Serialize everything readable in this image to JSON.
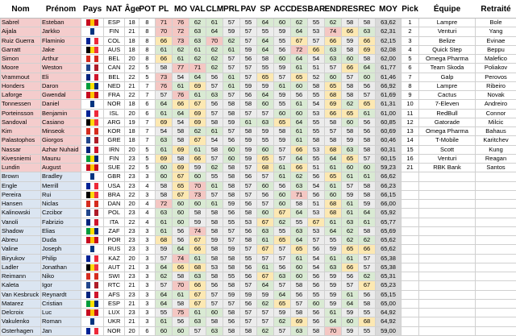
{
  "table": {
    "headers": [
      "Nom",
      "Prénom",
      "Pays",
      "NAT",
      "Âge",
      "POT",
      "PL",
      "MO",
      "VAL",
      "CLM",
      "PRL",
      "PAV",
      "SP",
      "ACC",
      "DES",
      "BAR",
      "END",
      "RES",
      "REC",
      "MOY",
      "Pick",
      "Équipe",
      "Retraité"
    ],
    "rows": [
      [
        "Sabrel",
        "Esteban",
        "ESP",
        18,
        8,
        71,
        76,
        62,
        61,
        57,
        55,
        64,
        60,
        62,
        55,
        62,
        58,
        58,
        "63,62",
        1,
        "Lampre",
        "Bole"
      ],
      [
        "Aijala",
        "Jarkko",
        "FIN",
        21,
        8,
        70,
        72,
        63,
        64,
        59,
        57,
        55,
        59,
        64,
        53,
        74,
        66,
        63,
        "62,31",
        2,
        "Venturi",
        "Yang"
      ],
      [
        "Ruiz Guerra",
        "Flaminio",
        "COL",
        18,
        8,
        66,
        73,
        63,
        70,
        62,
        57,
        64,
        55,
        67,
        57,
        66,
        59,
        66,
        "62,15",
        3,
        "Belize",
        "Evinae"
      ],
      [
        "Garratt",
        "Jake",
        "AUS",
        18,
        8,
        61,
        62,
        61,
        62,
        61,
        59,
        64,
        56,
        72,
        66,
        63,
        58,
        69,
        "62,08",
        4,
        "Quick Step",
        "Beppu"
      ],
      [
        "Simon",
        "Arthur",
        "BEL",
        20,
        8,
        66,
        61,
        62,
        62,
        57,
        56,
        58,
        60,
        64,
        54,
        63,
        60,
        58,
        "62,00",
        5,
        "Omega Pharma",
        "Malefico"
      ],
      [
        "Moore",
        "Weston",
        "CAN",
        22,
        5,
        58,
        77,
        71,
        62,
        57,
        57,
        55,
        59,
        61,
        51,
        57,
        66,
        64,
        "61,77",
        6,
        "Team Skoda",
        "Poliakov"
      ],
      [
        "Vrammout",
        "Eli",
        "BEL",
        22,
        5,
        73,
        54,
        64,
        56,
        61,
        57,
        65,
        57,
        65,
        52,
        60,
        57,
        60,
        "61,46",
        7,
        "Galp",
        "Perovos"
      ],
      [
        "Honders",
        "Daron",
        "NED",
        21,
        7,
        76,
        61,
        69,
        57,
        61,
        59,
        59,
        61,
        60,
        58,
        65,
        58,
        56,
        "66,92",
        8,
        "Lampre",
        "Ribeiro"
      ],
      [
        "Laforge",
        "Gwendal",
        "FRA",
        22,
        7,
        57,
        76,
        61,
        63,
        57,
        56,
        64,
        59,
        56,
        55,
        68,
        58,
        57,
        "61,69",
        9,
        "Cactus",
        "Novak"
      ],
      [
        "Tonnessen",
        "Daniel",
        "NOR",
        18,
        6,
        64,
        66,
        67,
        56,
        58,
        58,
        60,
        55,
        61,
        54,
        69,
        62,
        65,
        "61,31",
        10,
        "7-Eleven",
        "Andreiro"
      ],
      [
        "Porteinsson",
        "Benjamin",
        "ISL",
        20,
        6,
        61,
        64,
        69,
        57,
        58,
        57,
        57,
        60,
        60,
        53,
        66,
        65,
        61,
        "61,00",
        11,
        "RedBull",
        "Connor"
      ],
      [
        "Sandoval",
        "Casiano",
        "ARG",
        19,
        7,
        69,
        54,
        69,
        58,
        59,
        61,
        63,
        65,
        64,
        55,
        58,
        60,
        56,
        "60,85",
        12,
        "Gatorade",
        "Milcic"
      ],
      [
        "Kim",
        "Minseok",
        "KOR",
        18,
        7,
        54,
        58,
        62,
        61,
        57,
        58,
        59,
        58,
        61,
        55,
        57,
        58,
        56,
        "60,69",
        13,
        "Omega Pharma",
        "Bahaus"
      ],
      [
        "Palastophos",
        "Giorgos",
        "GRE",
        18,
        7,
        63,
        58,
        67,
        54,
        56,
        59,
        55,
        59,
        61,
        58,
        58,
        59,
        58,
        "60,46",
        14,
        "T-Mobile",
        "Karitchev"
      ],
      [
        "Nassar",
        "Azhar Nuhaid",
        "IRN",
        20,
        5,
        61,
        69,
        61,
        58,
        60,
        59,
        60,
        57,
        66,
        53,
        68,
        63,
        58,
        "60,31",
        15,
        "Scott",
        "Kung"
      ],
      [
        "Kivesniemi",
        "Maunu",
        "FIN",
        23,
        5,
        69,
        58,
        66,
        57,
        60,
        59,
        65,
        57,
        64,
        55,
        64,
        65,
        57,
        "60,15",
        16,
        "Venturi",
        "Reagan"
      ],
      [
        "Lundin",
        "August",
        "SUE",
        22,
        5,
        60,
        69,
        59,
        62,
        58,
        57,
        68,
        61,
        66,
        51,
        61,
        60,
        60,
        "59,23",
        21,
        "RBK Bank",
        "Santos"
      ],
      [
        "Brown",
        "Bradley",
        "GBR",
        23,
        3,
        60,
        67,
        60,
        55,
        58,
        56,
        57,
        61,
        62,
        56,
        65,
        61,
        61,
        "66,62"
      ],
      [
        "Engle",
        "Merrill",
        "USA",
        23,
        4,
        58,
        65,
        70,
        61,
        58,
        57,
        60,
        56,
        63,
        54,
        61,
        57,
        58,
        "66,23"
      ],
      [
        "Pereira",
        "Rui",
        "BRA",
        22,
        3,
        58,
        67,
        73,
        57,
        58,
        57,
        56,
        60,
        71,
        56,
        60,
        59,
        58,
        "66,15"
      ],
      [
        "Hansen",
        "Niclas",
        "DAN",
        20,
        4,
        72,
        60,
        60,
        61,
        59,
        56,
        57,
        60,
        58,
        51,
        68,
        61,
        59,
        "66,00"
      ],
      [
        "Kalinowski",
        "Czcibor",
        "POL",
        23,
        4,
        63,
        60,
        58,
        58,
        56,
        58,
        60,
        67,
        64,
        53,
        68,
        61,
        64,
        "65,92"
      ],
      [
        "Vanoli",
        "Fabrizio",
        "ITA",
        22,
        4,
        61,
        60,
        59,
        58,
        55,
        53,
        67,
        62,
        55,
        67,
        61,
        63,
        61,
        "65,77"
      ],
      [
        "Shadow",
        "Elias",
        "ZAF",
        23,
        3,
        61,
        56,
        74,
        58,
        57,
        56,
        63,
        55,
        63,
        53,
        64,
        62,
        58,
        "65,69"
      ],
      [
        "Abreu",
        "Duda",
        "POR",
        23,
        3,
        68,
        56,
        67,
        59,
        57,
        58,
        61,
        65,
        64,
        57,
        55,
        62,
        62,
        "65,62"
      ],
      [
        "Valine",
        "Joseph",
        "RUS",
        23,
        3,
        59,
        64,
        66,
        58,
        59,
        57,
        67,
        57,
        65,
        56,
        59,
        65,
        66,
        "65,62"
      ],
      [
        "Biryukov",
        "Philip",
        "KAZ",
        20,
        3,
        57,
        74,
        61,
        58,
        58,
        55,
        57,
        57,
        61,
        54,
        61,
        61,
        57,
        "65,38"
      ],
      [
        "Ladler",
        "Jonathan",
        "AUT",
        21,
        3,
        64,
        66,
        68,
        53,
        58,
        56,
        61,
        56,
        60,
        54,
        63,
        66,
        57,
        "65,38"
      ],
      [
        "Reimann",
        "Niko",
        "SWI",
        23,
        3,
        62,
        58,
        63,
        58,
        55,
        56,
        67,
        63,
        60,
        56,
        59,
        56,
        62,
        "65,31"
      ],
      [
        "Kaleta",
        "Igor",
        "RTC",
        21,
        3,
        57,
        70,
        66,
        56,
        58,
        57,
        64,
        57,
        58,
        56,
        59,
        57,
        67,
        "65,23"
      ],
      [
        "Van Kesbruck",
        "Reynardt",
        "AFS",
        23,
        3,
        64,
        61,
        67,
        57,
        59,
        59,
        59,
        64,
        56,
        55,
        59,
        61,
        56,
        "65,15"
      ],
      [
        "Matarez",
        "Cristian",
        "ESP",
        21,
        3,
        64,
        58,
        67,
        57,
        57,
        56,
        62,
        65,
        57,
        60,
        59,
        64,
        58,
        "65,00"
      ],
      [
        "Delcroix",
        "Luc",
        "LUX",
        23,
        3,
        55,
        75,
        61,
        60,
        58,
        57,
        57,
        59,
        58,
        56,
        61,
        59,
        55,
        "64,92"
      ],
      [
        "Vakulenko",
        "Roman",
        "UKR",
        21,
        3,
        61,
        56,
        63,
        58,
        56,
        57,
        57,
        62,
        69,
        56,
        64,
        60,
        68,
        "64,92"
      ],
      [
        "Osterhagen",
        "Jan",
        "NOR",
        20,
        6,
        60,
        60,
        57,
        63,
        58,
        58,
        62,
        57,
        63,
        58,
        70,
        59,
        55,
        "59,00"
      ]
    ]
  }
}
